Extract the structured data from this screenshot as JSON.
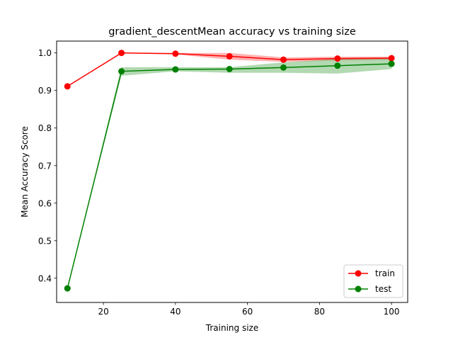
{
  "chart_data": {
    "type": "line",
    "title": "gradient_descentMean accuracy vs training size",
    "xlabel": "Training size",
    "ylabel": "Mean Accuracy Score",
    "x": [
      10,
      25,
      40,
      55,
      70,
      85,
      100
    ],
    "xlim": [
      7,
      104.5
    ],
    "ylim": [
      0.3355,
      1.0315
    ],
    "xticks": [
      20,
      40,
      60,
      80,
      100
    ],
    "yticks": [
      0.4,
      0.5,
      0.6,
      0.7,
      0.8,
      0.9,
      1.0
    ],
    "grid": false,
    "legend_position": "lower-right",
    "series": [
      {
        "name": "train",
        "color": "#ff0000",
        "band_color": "#ff0000",
        "values": [
          0.911,
          1.0,
          0.998,
          0.991,
          0.982,
          0.985,
          0.986
        ],
        "upper": [
          0.911,
          1.0,
          1.0,
          1.0,
          0.988,
          0.99,
          0.99
        ],
        "lower": [
          0.911,
          1.0,
          0.996,
          0.982,
          0.976,
          0.98,
          0.982
        ]
      },
      {
        "name": "test",
        "color": "#008000",
        "band_color": "#008000",
        "values": [
          0.373,
          0.951,
          0.956,
          0.957,
          0.961,
          0.966,
          0.971
        ],
        "upper": [
          0.373,
          0.962,
          0.962,
          0.962,
          0.975,
          0.984,
          0.986
        ],
        "lower": [
          0.373,
          0.939,
          0.951,
          0.947,
          0.947,
          0.945,
          0.957
        ]
      }
    ]
  }
}
